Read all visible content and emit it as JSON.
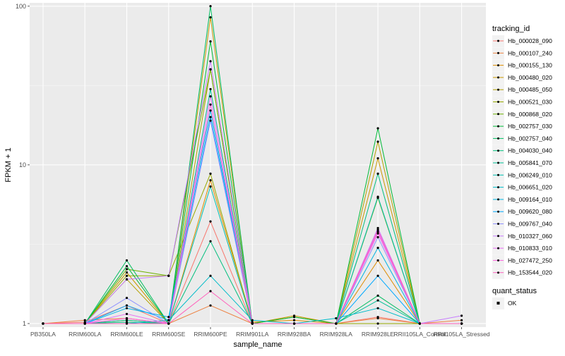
{
  "chart_data": {
    "type": "line",
    "title": "",
    "xlabel": "sample_name",
    "ylabel": "FPKM + 1",
    "y_scale": "log10",
    "ylim": [
      0.95,
      105
    ],
    "yticks": [
      1,
      10,
      100
    ],
    "ytick_labels": [
      "1",
      "10",
      "100"
    ],
    "grid": true,
    "background": "#ebebeb",
    "categories": [
      "PB350LA",
      "RRIM600LA",
      "RRIM600LE",
      "RRIM600SE",
      "RRIM600PE",
      "RRIM901LA",
      "RRIM928BA",
      "RRIM928LA",
      "RRIM928LE",
      "RRII105LA_Control",
      "RRII105LA_Stressed"
    ],
    "legend": {
      "title": "tracking_id",
      "position": "right",
      "shape_title": "quant_status",
      "shape_entries": [
        "OK"
      ]
    },
    "series": [
      {
        "name": "Hb_000028_090",
        "color": "#f8766d",
        "values": [
          1,
          1.02,
          1.3,
          1.0,
          4.4,
          1.0,
          1.0,
          1.0,
          1.1,
          1.0,
          1.0
        ]
      },
      {
        "name": "Hb_000107_240",
        "color": "#ed8141",
        "values": [
          1,
          1.05,
          1.08,
          1.0,
          1.3,
          1.0,
          1.0,
          1.0,
          1.08,
          1.0,
          1.05
        ]
      },
      {
        "name": "Hb_000155_130",
        "color": "#de8c00",
        "values": [
          1,
          1.0,
          1.05,
          1.0,
          8.0,
          1.02,
          1.05,
          1.0,
          2.5,
          1.0,
          1.0
        ]
      },
      {
        "name": "Hb_000480_020",
        "color": "#c99800",
        "values": [
          1,
          1.0,
          2.1,
          1.0,
          85,
          1.0,
          1.12,
          1.0,
          11,
          1.0,
          1.0
        ]
      },
      {
        "name": "Hb_000485_050",
        "color": "#b3a000",
        "values": [
          1,
          1.0,
          1.9,
          1.0,
          40,
          1.0,
          1.1,
          1.0,
          14,
          1.0,
          1.0
        ]
      },
      {
        "name": "Hb_000521_030",
        "color": "#96a900",
        "values": [
          1,
          1.0,
          2.0,
          2.0,
          8.8,
          1.0,
          1.0,
          1.0,
          1.0,
          1.0,
          1.0
        ]
      },
      {
        "name": "Hb_000868_020",
        "color": "#6bb100",
        "values": [
          1,
          1.0,
          2.2,
          2.0,
          40,
          1.0,
          1.0,
          1.0,
          6.2,
          1.0,
          1.0
        ]
      },
      {
        "name": "Hb_002757_030",
        "color": "#00ba38",
        "values": [
          1,
          1.0,
          2.3,
          1.0,
          60,
          1.0,
          1.1,
          1.0,
          17,
          1.0,
          1.0
        ]
      },
      {
        "name": "Hb_002757_040",
        "color": "#00bd5f",
        "values": [
          1,
          1.0,
          2.5,
          1.0,
          100,
          1.0,
          1.0,
          1.0,
          1.5,
          1.0,
          1.0
        ]
      },
      {
        "name": "Hb_004030_040",
        "color": "#00bf7d",
        "values": [
          1,
          1.0,
          1.02,
          1.0,
          3.3,
          1.0,
          1.0,
          1.0,
          8.8,
          1.0,
          1.0
        ]
      },
      {
        "name": "Hb_005841_070",
        "color": "#00c097",
        "values": [
          1,
          1.0,
          1.05,
          1.0,
          30,
          1.0,
          1.0,
          1.0,
          1.4,
          1.0,
          1.0
        ]
      },
      {
        "name": "Hb_006249_010",
        "color": "#00bfb0",
        "values": [
          1,
          1.0,
          1.0,
          1.0,
          7.3,
          1.0,
          1.0,
          1.0,
          6.3,
          1.0,
          1.0
        ]
      },
      {
        "name": "Hb_006651_020",
        "color": "#00bcc9",
        "values": [
          1,
          1.0,
          1.0,
          1.05,
          2.0,
          1.05,
          1.0,
          1.08,
          1.25,
          1.0,
          1.0
        ]
      },
      {
        "name": "Hb_009164_010",
        "color": "#00b5e2",
        "values": [
          1,
          1.0,
          1.25,
          1.1,
          22,
          1.0,
          1.0,
          1.0,
          3.0,
          1.0,
          1.0
        ]
      },
      {
        "name": "Hb_009620_080",
        "color": "#00a9ff",
        "values": [
          1,
          1.0,
          1.3,
          1.05,
          20,
          1.0,
          1.0,
          1.0,
          2.0,
          1.0,
          1.0
        ]
      },
      {
        "name": "Hb_009767_040",
        "color": "#8f91ff",
        "values": [
          1,
          1.0,
          1.45,
          1.0,
          19,
          1.0,
          1.0,
          1.0,
          3.5,
          1.0,
          1.0
        ]
      },
      {
        "name": "Hb_010327_060",
        "color": "#c77cff",
        "values": [
          1,
          1.0,
          1.9,
          2.0,
          45,
          1.0,
          1.0,
          1.0,
          4.0,
          1.0,
          1.12
        ]
      },
      {
        "name": "Hb_010833_010",
        "color": "#e76bf3",
        "values": [
          1,
          1.0,
          1.15,
          1.0,
          27,
          1.0,
          1.0,
          1.0,
          3.8,
          1.0,
          1.0
        ]
      },
      {
        "name": "Hb_027472_250",
        "color": "#fa62db",
        "values": [
          1,
          1.0,
          1.08,
          1.0,
          24,
          1.0,
          1.0,
          1.0,
          3.7,
          1.0,
          1.0
        ]
      },
      {
        "name": "Hb_153544_020",
        "color": "#ff62bc",
        "values": [
          1,
          1.0,
          1.0,
          1.0,
          1.6,
          1.0,
          1.0,
          1.0,
          3.9,
          1.0,
          1.0
        ]
      }
    ]
  }
}
